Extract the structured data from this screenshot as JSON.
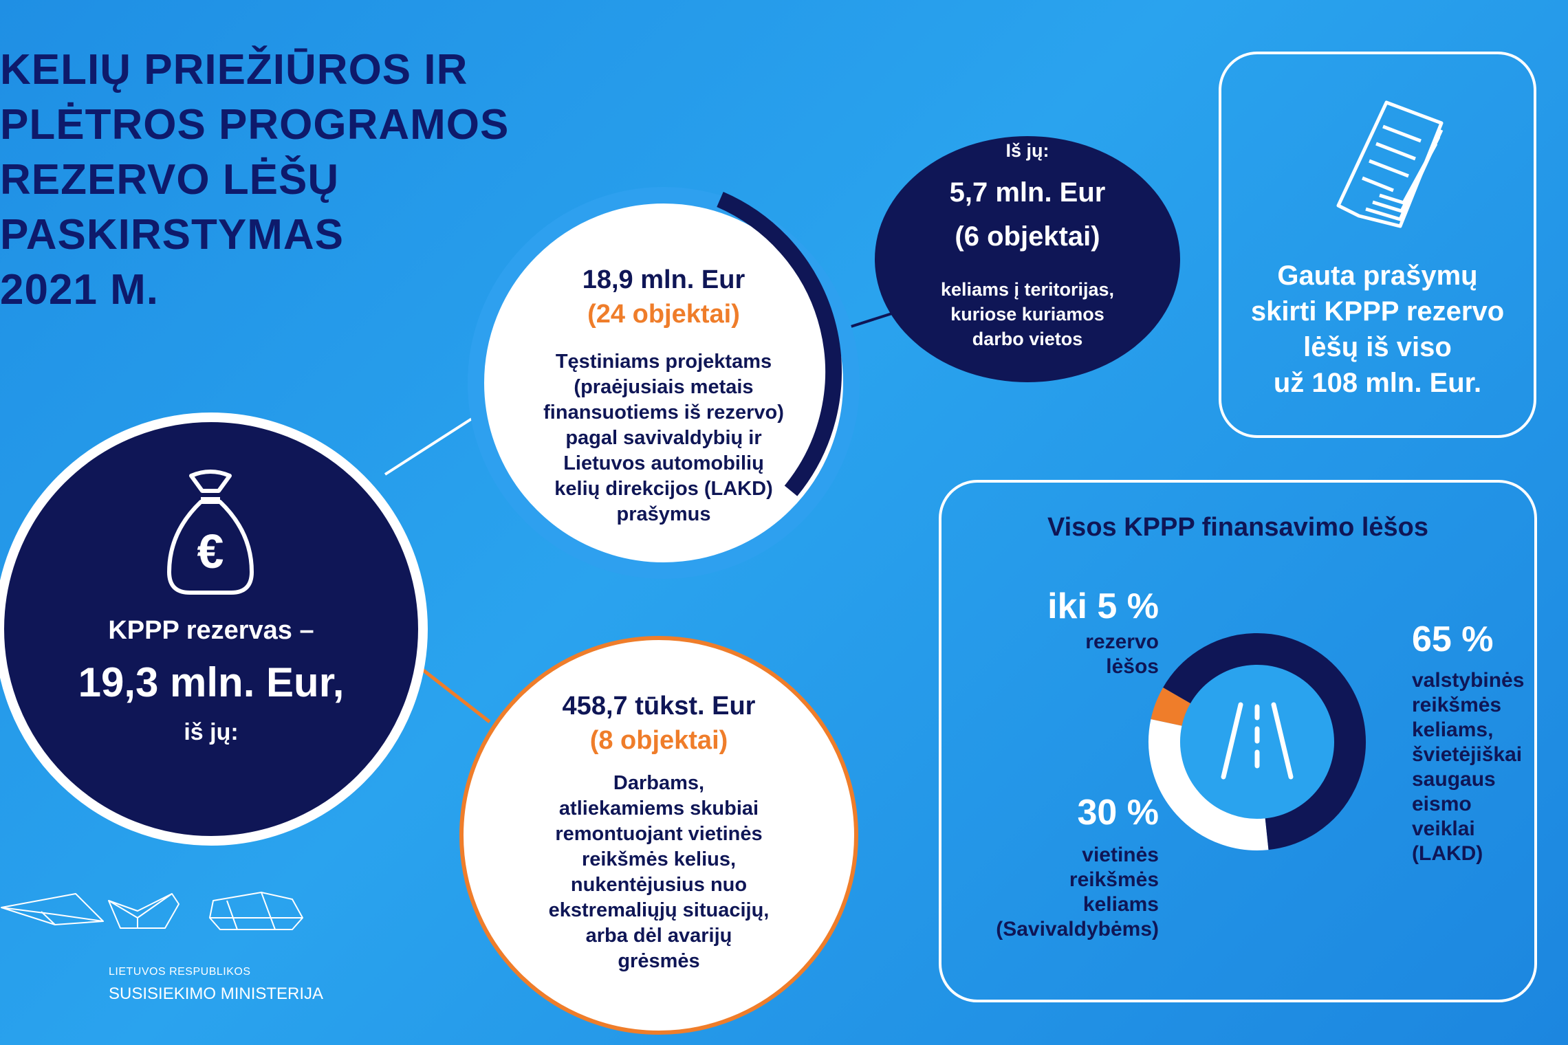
{
  "title": "KELIŲ PRIEŽIŪROS IR\nPLĖTROS PROGRAMOS\nREZERVO LĖŠŲ\nPASKIRSTYMAS\n2021 M.",
  "reserve": {
    "label": "KPPP rezervas –",
    "value": "19,3 mln. Eur,",
    "sub": "iš jų:",
    "icon": "money-bag-euro-icon"
  },
  "continuing": {
    "value": "18,9 mln. Eur",
    "objects": "(24 objektai)",
    "description": "Tęstiniams projektams\n(praėjusiais metais\nfinansuotiems iš rezervo)\npagal savivaldybių ir\nLietuvos automobilių\nkelių direkcijos (LAKD)\nprašymus"
  },
  "workplaces": {
    "label": "Iš jų:",
    "value": "5,7 mln. Eur",
    "objects": "(6 objektai)",
    "description": "keliams į teritorijas,\nkuriose kuriamos\ndarbo vietos"
  },
  "urgent": {
    "value": "458,7 tūkst. Eur",
    "objects": "(8 objektai)",
    "description": "Darbams,\natliekamiems skubiai\nremontuojant vietinės\nreikšmės kelius,\nnukentėjusius nuo\nekstremaliųjų situacijų,\narba dėl avarijų\ngrėsmės"
  },
  "requests": {
    "text": "Gauta prašymų\nskirti KPPP rezervo\nlėšų  iš viso\nuž 108 mln. Eur.",
    "icon": "documents-icon"
  },
  "funding": {
    "heading": "Visos KPPP finansavimo lėšos",
    "reserve_pct": "iki 5 %",
    "reserve_label": "rezervo\nlėšos",
    "local_pct": "30 %",
    "local_label": "vietinės\nreikšmės\nkeliams\n(Savivaldybėms)",
    "state_pct": "65 %",
    "state_label": "valstybinės\nreikšmės\nkeliams,\nšvietėjiškai\nsaugaus\neismo\nveiklai\n(LAKD)",
    "icon": "road-icon"
  },
  "chart_data": {
    "type": "pie",
    "categories": [
      "rezervo lėšos",
      "vietinės reikšmės keliams (Savivaldybėms)",
      "valstybinės reikšmės keliams, švietėjiškai saugaus eismo veiklai (LAKD)"
    ],
    "values": [
      5,
      30,
      65
    ],
    "colors": [
      "#ef7d2a",
      "#ffffff",
      "#0f1656"
    ]
  },
  "logo": {
    "line1": "LIETUVOS RESPUBLIKOS",
    "line2": "SUSISIEKIMO MINISTERIJA"
  },
  "colors": {
    "navy": "#0f1656",
    "orange": "#ef7d2a",
    "light_blue": "#2ea0ef",
    "white": "#ffffff"
  }
}
